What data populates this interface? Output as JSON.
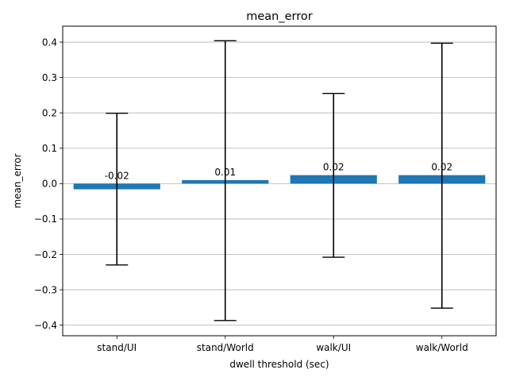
{
  "chart_data": {
    "type": "bar",
    "title": "mean_error",
    "xlabel": "dwell threshold (sec)",
    "ylabel": "mean_error",
    "categories": [
      "stand/UI",
      "stand/World",
      "walk/UI",
      "walk/World"
    ],
    "values": [
      -0.016,
      0.01,
      0.024,
      0.024
    ],
    "value_labels": [
      "-0.02",
      "0.01",
      "0.02",
      "0.02"
    ],
    "error_low": [
      -0.23,
      -0.387,
      -0.208,
      -0.352
    ],
    "error_high": [
      0.199,
      0.404,
      0.255,
      0.397
    ],
    "ylim": [
      -0.43,
      0.445
    ],
    "yticks": [
      -0.4,
      -0.3,
      -0.2,
      -0.1,
      0.0,
      0.1,
      0.2,
      0.3,
      0.4
    ],
    "ytick_labels": [
      "−0.4",
      "−0.3",
      "−0.2",
      "−0.1",
      "0.0",
      "0.1",
      "0.2",
      "0.3",
      "0.4"
    ],
    "grid": "y",
    "bar_color": "#1f77b4",
    "error_color": "#000000"
  }
}
